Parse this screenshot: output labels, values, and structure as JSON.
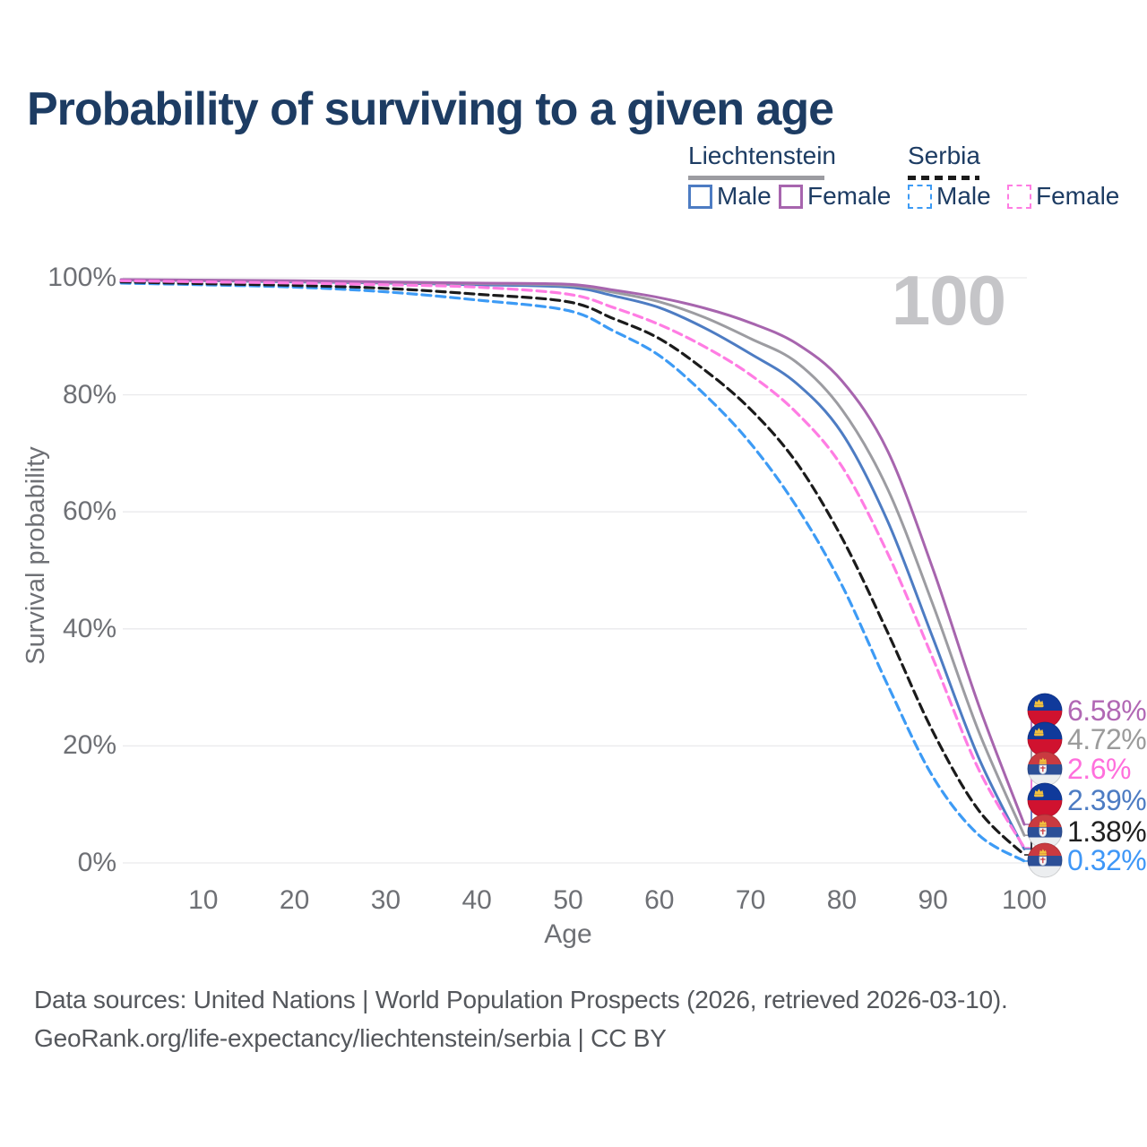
{
  "header": {
    "title": "Probability of surviving to a given age"
  },
  "legend": {
    "groups": [
      {
        "name": "Liechtenstein",
        "line_style": "solid",
        "items": [
          {
            "label": "Male",
            "series": "Liechtenstein Male"
          },
          {
            "label": "Female",
            "series": "Liechtenstein Female"
          }
        ]
      },
      {
        "name": "Serbia",
        "line_style": "dashed",
        "items": [
          {
            "label": "Male",
            "series": "Serbia Male"
          },
          {
            "label": "Female",
            "series": "Serbia Female"
          }
        ]
      }
    ]
  },
  "watermark": "100",
  "chart_data": {
    "type": "line",
    "title": "Probability of surviving to a given age",
    "xlabel": "Age",
    "ylabel": "Survival probability",
    "xlim": [
      1,
      100
    ],
    "ylim": [
      0,
      100
    ],
    "grid": "horizontal",
    "legend_position": "top-right",
    "x_ticks": [
      10,
      20,
      30,
      40,
      50,
      60,
      70,
      80,
      90,
      100
    ],
    "y_ticks": [
      {
        "value": 0,
        "label": "0%"
      },
      {
        "value": 20,
        "label": "20%"
      },
      {
        "value": 40,
        "label": "40%"
      },
      {
        "value": 60,
        "label": "60%"
      },
      {
        "value": 80,
        "label": "80%"
      },
      {
        "value": 100,
        "label": "100%"
      }
    ],
    "x": [
      1,
      10,
      20,
      30,
      40,
      50,
      55,
      60,
      65,
      70,
      75,
      80,
      85,
      90,
      95,
      100
    ],
    "series": [
      {
        "name": "Liechtenstein Female",
        "country": "Liechtenstein",
        "sex": "female",
        "style": "solid",
        "color": "#a765ae",
        "end_label": "6.58%",
        "values": [
          99.7,
          99.6,
          99.5,
          99.3,
          99.1,
          98.9,
          97.9,
          96.6,
          94.8,
          92.3,
          88.8,
          82.4,
          70.5,
          50.2,
          27.0,
          6.58
        ]
      },
      {
        "name": "Liechtenstein",
        "country": "Liechtenstein",
        "sex": "both",
        "style": "solid",
        "color": "#9c9ca1",
        "end_label": "4.72%",
        "values": [
          99.65,
          99.55,
          99.4,
          99.2,
          99.0,
          98.7,
          97.5,
          95.9,
          93.2,
          89.6,
          85.6,
          77.5,
          64.0,
          44.1,
          22.5,
          4.72
        ]
      },
      {
        "name": "Liechtenstein Male",
        "country": "Liechtenstein",
        "sex": "male",
        "style": "solid",
        "color": "#4d7cc3",
        "end_label": "2.39%",
        "values": [
          99.6,
          99.5,
          99.3,
          99.1,
          98.8,
          98.4,
          96.9,
          94.9,
          91.4,
          87.0,
          82.0,
          73.5,
          58.5,
          38.4,
          18.0,
          2.39
        ]
      },
      {
        "name": "Serbia Female",
        "country": "Serbia",
        "sex": "female",
        "style": "dashed",
        "color": "#ff7ce3",
        "end_label": "2.6%",
        "values": [
          99.5,
          99.3,
          99.1,
          98.8,
          98.4,
          97.2,
          94.9,
          92.0,
          88.2,
          83.4,
          77.0,
          67.8,
          53.0,
          34.9,
          16.0,
          2.6
        ]
      },
      {
        "name": "Serbia",
        "country": "Serbia",
        "sex": "both",
        "style": "dashed",
        "color": "#1b1b1b",
        "end_label": "1.38%",
        "values": [
          99.3,
          99.0,
          98.7,
          98.2,
          97.2,
          95.9,
          93.0,
          89.6,
          84.2,
          77.5,
          68.5,
          55.6,
          39.5,
          22.4,
          9.0,
          1.38
        ]
      },
      {
        "name": "Serbia Male",
        "country": "Serbia",
        "sex": "male",
        "style": "dashed",
        "color": "#3d9bf5",
        "end_label": "0.32%",
        "values": [
          99.1,
          98.8,
          98.4,
          97.6,
          96.2,
          94.4,
          90.9,
          86.7,
          80.0,
          71.7,
          61.0,
          47.5,
          30.5,
          14.7,
          4.8,
          0.32
        ]
      }
    ]
  },
  "end_labels": [
    {
      "value": "6.58%",
      "text_color": "#b168b4",
      "flag": "liechtenstein",
      "series": "Liechtenstein Female"
    },
    {
      "value": "4.72%",
      "text_color": "#9b9b9b",
      "flag": "liechtenstein",
      "series": "Liechtenstein"
    },
    {
      "value": "2.6%",
      "text_color": "#ff6fdc",
      "flag": "serbia",
      "series": "Serbia Female"
    },
    {
      "value": "2.39%",
      "text_color": "#4d7cc3",
      "flag": "liechtenstein",
      "series": "Liechtenstein Male"
    },
    {
      "value": "1.38%",
      "text_color": "#212121",
      "flag": "serbia",
      "series": "Serbia"
    },
    {
      "value": "0.32%",
      "text_color": "#3f97f7",
      "flag": "serbia",
      "series": "Serbia Male"
    }
  ],
  "footer": {
    "line1": "Data sources: United Nations | World Population Prospects (2026, retrieved 2026-03-10).",
    "line2": "GeoRank.org/life-expectancy/liechtenstein/serbia | CC BY"
  }
}
